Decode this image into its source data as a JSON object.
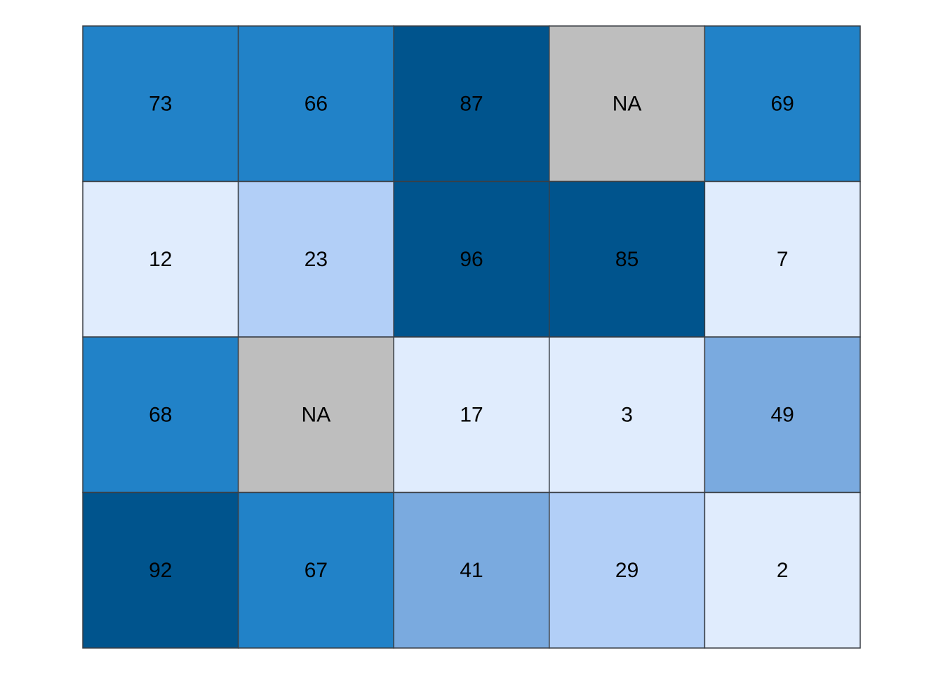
{
  "chart_data": {
    "type": "heatmap",
    "rows": 4,
    "cols": 5,
    "values": [
      [
        73,
        66,
        87,
        null,
        69
      ],
      [
        12,
        23,
        96,
        85,
        7
      ],
      [
        68,
        null,
        17,
        3,
        49
      ],
      [
        92,
        67,
        41,
        29,
        2
      ]
    ],
    "na_label": "NA",
    "color_bins": [
      {
        "min": 0,
        "max": 20,
        "color": "#e0ecfd"
      },
      {
        "min": 20,
        "max": 40,
        "color": "#b2cff7"
      },
      {
        "min": 40,
        "max": 60,
        "color": "#7aaadf"
      },
      {
        "min": 60,
        "max": 80,
        "color": "#2182c8"
      },
      {
        "min": 80,
        "max": 100,
        "color": "#00548d"
      }
    ],
    "na_color": "#bebebe",
    "border_color": "#3a3f45"
  }
}
